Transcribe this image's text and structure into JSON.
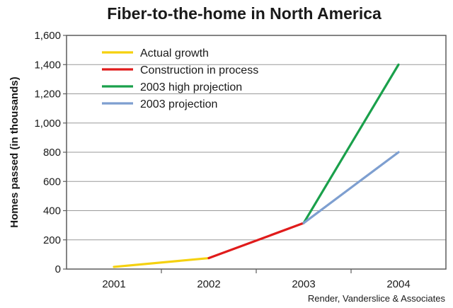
{
  "chart_data": {
    "type": "line",
    "title": "Fiber-to-the-home in North America",
    "ylabel": "Homes passed (in thousands)",
    "xlabel": "",
    "source": "Render, Vanderslice & Associates",
    "categories": [
      "2001",
      "2002",
      "2003",
      "2004"
    ],
    "ylim": [
      0,
      1600
    ],
    "yticks": [
      0,
      200,
      400,
      600,
      800,
      1000,
      1200,
      1400,
      1600
    ],
    "ytick_labels": [
      "0",
      "200",
      "400",
      "600",
      "800",
      "1,000",
      "1,200",
      "1,400",
      "1,600"
    ],
    "grid": true,
    "legend_position": "top-left",
    "series": [
      {
        "name": "Actual growth",
        "color": "#f5d10f",
        "points": [
          {
            "x": "2001",
            "y": 15
          },
          {
            "x": "2002",
            "y": 75
          }
        ]
      },
      {
        "name": "Construction in process",
        "color": "#e01b1b",
        "points": [
          {
            "x": "2002",
            "y": 75
          },
          {
            "x": "2003",
            "y": 315
          }
        ]
      },
      {
        "name": "2003 high projection",
        "color": "#1aa04b",
        "points": [
          {
            "x": "2003",
            "y": 315
          },
          {
            "x": "2004",
            "y": 1400
          }
        ]
      },
      {
        "name": "2003 projection",
        "color": "#7e9fd0",
        "points": [
          {
            "x": "2003",
            "y": 315
          },
          {
            "x": "2004",
            "y": 800
          }
        ]
      }
    ],
    "colors": {
      "frame": "#5c5c5c",
      "grid": "#9a9a9a"
    }
  }
}
